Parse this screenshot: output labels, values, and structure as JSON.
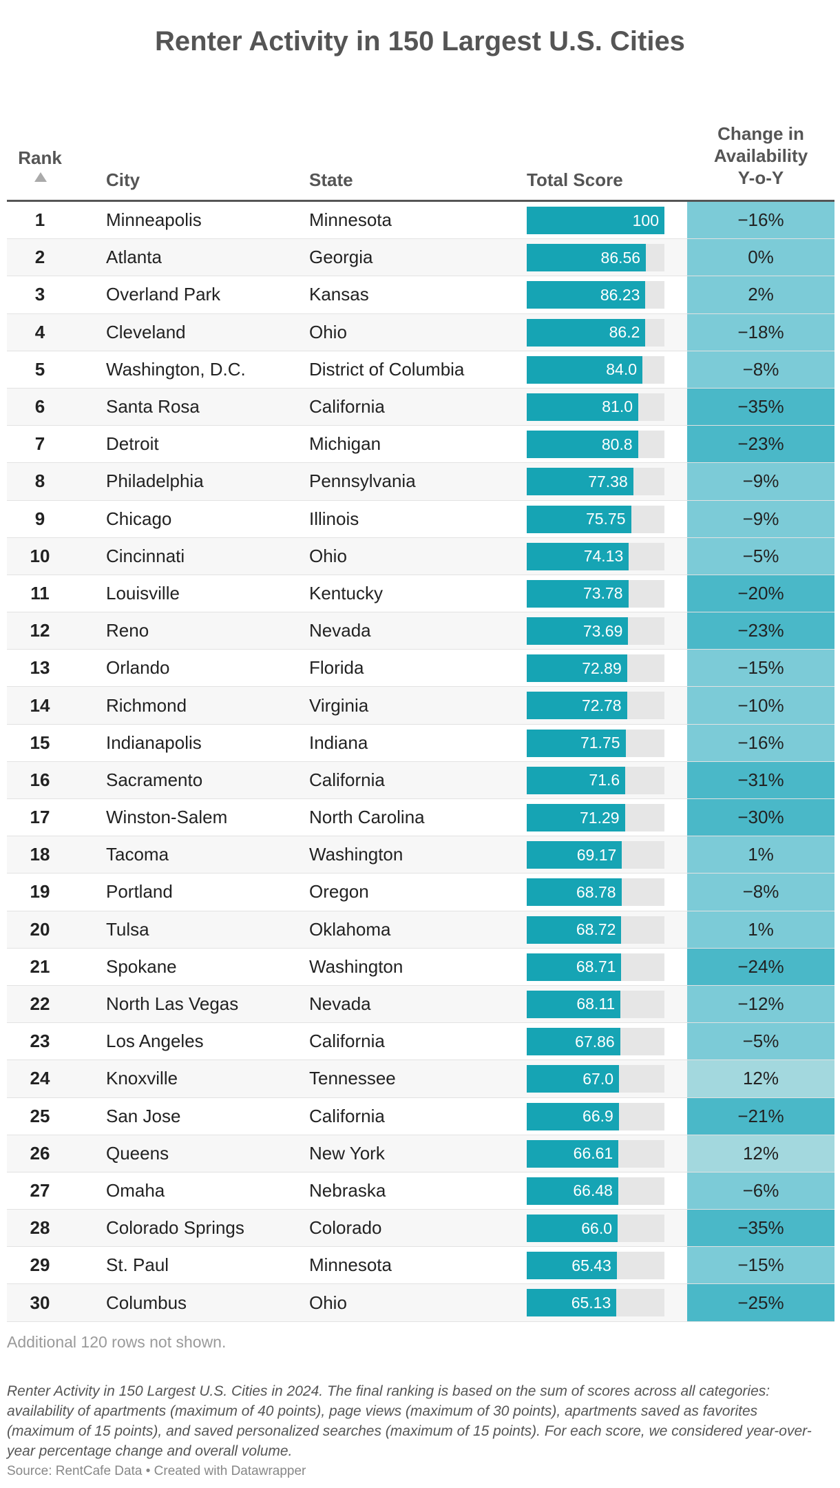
{
  "title": "Renter Activity in 150 Largest U.S. Cities",
  "columns": {
    "rank": "Rank",
    "city": "City",
    "state": "State",
    "score": "Total Score",
    "change": [
      "Change in",
      "Availability",
      "Y-o-Y"
    ]
  },
  "colors": {
    "bar": "#16a4b4",
    "bar_track": "#e6e6e6",
    "change_scale": [
      "#a3d8de",
      "#7ccbd7",
      "#4ab8c8"
    ]
  },
  "chart_data": {
    "type": "table",
    "title": "Renter Activity in 150 Largest U.S. Cities",
    "score_max": 100,
    "rows": [
      {
        "rank": "1",
        "city": "Minneapolis",
        "state": "Minnesota",
        "score": 100,
        "score_label": "100",
        "change": "−16%",
        "change_value": -16
      },
      {
        "rank": "2",
        "city": "Atlanta",
        "state": "Georgia",
        "score": 86.56,
        "score_label": "86.56",
        "change": "0%",
        "change_value": 0
      },
      {
        "rank": "3",
        "city": "Overland Park",
        "state": "Kansas",
        "score": 86.23,
        "score_label": "86.23",
        "change": "2%",
        "change_value": 2
      },
      {
        "rank": "4",
        "city": "Cleveland",
        "state": "Ohio",
        "score": 86.2,
        "score_label": "86.2",
        "change": "−18%",
        "change_value": -18
      },
      {
        "rank": "5",
        "city": "Washington, D.C.",
        "state": "District of Columbia",
        "score": 84.0,
        "score_label": "84.0",
        "change": "−8%",
        "change_value": -8
      },
      {
        "rank": "6",
        "city": "Santa Rosa",
        "state": "California",
        "score": 81.0,
        "score_label": "81.0",
        "change": "−35%",
        "change_value": -35
      },
      {
        "rank": "7",
        "city": "Detroit",
        "state": "Michigan",
        "score": 80.8,
        "score_label": "80.8",
        "change": "−23%",
        "change_value": -23
      },
      {
        "rank": "8",
        "city": "Philadelphia",
        "state": "Pennsylvania",
        "score": 77.38,
        "score_label": "77.38",
        "change": "−9%",
        "change_value": -9
      },
      {
        "rank": "9",
        "city": "Chicago",
        "state": "Illinois",
        "score": 75.75,
        "score_label": "75.75",
        "change": "−9%",
        "change_value": -9
      },
      {
        "rank": "10",
        "city": "Cincinnati",
        "state": "Ohio",
        "score": 74.13,
        "score_label": "74.13",
        "change": "−5%",
        "change_value": -5
      },
      {
        "rank": "11",
        "city": "Louisville",
        "state": "Kentucky",
        "score": 73.78,
        "score_label": "73.78",
        "change": "−20%",
        "change_value": -20
      },
      {
        "rank": "12",
        "city": "Reno",
        "state": "Nevada",
        "score": 73.69,
        "score_label": "73.69",
        "change": "−23%",
        "change_value": -23
      },
      {
        "rank": "13",
        "city": "Orlando",
        "state": "Florida",
        "score": 72.89,
        "score_label": "72.89",
        "change": "−15%",
        "change_value": -15
      },
      {
        "rank": "14",
        "city": "Richmond",
        "state": "Virginia",
        "score": 72.78,
        "score_label": "72.78",
        "change": "−10%",
        "change_value": -10
      },
      {
        "rank": "15",
        "city": "Indianapolis",
        "state": "Indiana",
        "score": 71.75,
        "score_label": "71.75",
        "change": "−16%",
        "change_value": -16
      },
      {
        "rank": "16",
        "city": "Sacramento",
        "state": "California",
        "score": 71.6,
        "score_label": "71.6",
        "change": "−31%",
        "change_value": -31
      },
      {
        "rank": "17",
        "city": "Winston-Salem",
        "state": "North Carolina",
        "score": 71.29,
        "score_label": "71.29",
        "change": "−30%",
        "change_value": -30
      },
      {
        "rank": "18",
        "city": "Tacoma",
        "state": "Washington",
        "score": 69.17,
        "score_label": "69.17",
        "change": "1%",
        "change_value": 1
      },
      {
        "rank": "19",
        "city": "Portland",
        "state": "Oregon",
        "score": 68.78,
        "score_label": "68.78",
        "change": "−8%",
        "change_value": -8
      },
      {
        "rank": "20",
        "city": "Tulsa",
        "state": "Oklahoma",
        "score": 68.72,
        "score_label": "68.72",
        "change": "1%",
        "change_value": 1
      },
      {
        "rank": "21",
        "city": "Spokane",
        "state": "Washington",
        "score": 68.71,
        "score_label": "68.71",
        "change": "−24%",
        "change_value": -24
      },
      {
        "rank": "22",
        "city": "North Las Vegas",
        "state": "Nevada",
        "score": 68.11,
        "score_label": "68.11",
        "change": "−12%",
        "change_value": -12
      },
      {
        "rank": "23",
        "city": "Los Angeles",
        "state": "California",
        "score": 67.86,
        "score_label": "67.86",
        "change": "−5%",
        "change_value": -5
      },
      {
        "rank": "24",
        "city": "Knoxville",
        "state": "Tennessee",
        "score": 67.0,
        "score_label": "67.0",
        "change": "12%",
        "change_value": 12
      },
      {
        "rank": "25",
        "city": "San Jose",
        "state": "California",
        "score": 66.9,
        "score_label": "66.9",
        "change": "−21%",
        "change_value": -21
      },
      {
        "rank": "26",
        "city": "Queens",
        "state": "New York",
        "score": 66.61,
        "score_label": "66.61",
        "change": "12%",
        "change_value": 12
      },
      {
        "rank": "27",
        "city": "Omaha",
        "state": "Nebraska",
        "score": 66.48,
        "score_label": "66.48",
        "change": "−6%",
        "change_value": -6
      },
      {
        "rank": "28",
        "city": "Colorado Springs",
        "state": "Colorado",
        "score": 66.0,
        "score_label": "66.0",
        "change": "−35%",
        "change_value": -35
      },
      {
        "rank": "29",
        "city": "St. Paul",
        "state": "Minnesota",
        "score": 65.43,
        "score_label": "65.43",
        "change": "−15%",
        "change_value": -15
      },
      {
        "rank": "30",
        "city": "Columbus",
        "state": "Ohio",
        "score": 65.13,
        "score_label": "65.13",
        "change": "−25%",
        "change_value": -25
      }
    ]
  },
  "more_rows": "Additional 120 rows not shown.",
  "notes": "Renter Activity in 150 Largest U.S. Cities in 2024. The final ranking is based on the sum of scores across all categories: availability of apartments (maximum of 40 points), page views (maximum of 30 points), apartments saved as favorites (maximum of 15 points), and saved personalized searches (maximum of 15 points). For each score, we considered year-over-year percentage change and overall volume.",
  "source": "Source: RentCafe Data • Created with Datawrapper"
}
